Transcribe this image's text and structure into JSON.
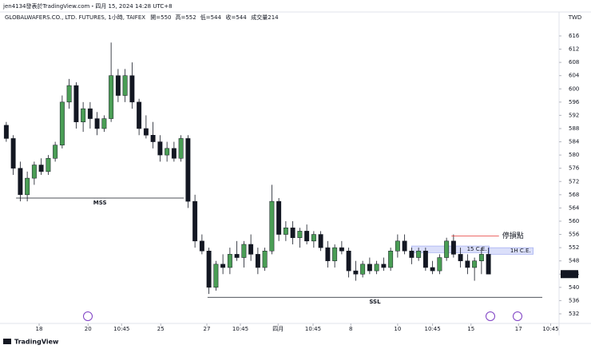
{
  "header": "jen4134發表於TradingView.com・四月 15, 2024 14:28 UTC+8",
  "chart_data": {
    "type": "candlestick",
    "symbol": "GLOBALWAFERS.CO., LTD. FUTURES, 1小時, TAIFEX",
    "legend_values": [
      "開=550",
      "高=552",
      "低=544",
      "收=544",
      "成交量214"
    ],
    "currency": "TWD",
    "up_color": "#4a9e55",
    "down_color": "#131722",
    "open": [
      589,
      585,
      576,
      568,
      573,
      577,
      575,
      579,
      583,
      596,
      601,
      590,
      594,
      591,
      588,
      591,
      604,
      598,
      604,
      596,
      588,
      586,
      584,
      580,
      582,
      579,
      585,
      566,
      554,
      551,
      540,
      547,
      546,
      550,
      549,
      553,
      550,
      546,
      551,
      566,
      556,
      558,
      555,
      557,
      554,
      556,
      552,
      548,
      552,
      551,
      545,
      544,
      547,
      545,
      547,
      546,
      551,
      554,
      551,
      549,
      551,
      546,
      545,
      549,
      554,
      550,
      548,
      546,
      548,
      550
    ],
    "high": [
      590,
      586,
      578,
      575,
      578,
      579,
      580,
      584,
      598,
      603,
      602,
      596,
      596,
      593,
      592,
      614,
      606,
      606,
      608,
      597,
      592,
      590,
      586,
      584,
      584,
      586,
      586,
      568,
      556,
      552,
      548,
      550,
      552,
      554,
      554,
      556,
      552,
      552,
      571,
      567,
      560,
      560,
      558,
      559,
      557,
      557,
      554,
      553,
      554,
      552,
      548,
      548,
      549,
      548,
      549,
      552,
      556,
      556,
      552,
      552,
      552,
      548,
      550,
      555,
      556,
      552,
      550,
      549,
      552,
      552
    ],
    "low": [
      584,
      574,
      566,
      566,
      571,
      574,
      574,
      578,
      582,
      594,
      588,
      587,
      588,
      586,
      587,
      590,
      596,
      596,
      594,
      586,
      585,
      582,
      578,
      578,
      578,
      578,
      564,
      552,
      550,
      538,
      539,
      544,
      544,
      548,
      546,
      548,
      544,
      545,
      550,
      554,
      554,
      553,
      552,
      553,
      552,
      551,
      546,
      546,
      550,
      543,
      542,
      543,
      544,
      544,
      545,
      545,
      549,
      550,
      547,
      548,
      545,
      544,
      544,
      548,
      549,
      546,
      544,
      542,
      544,
      544
    ],
    "close": [
      585,
      576,
      568,
      573,
      577,
      575,
      579,
      583,
      596,
      601,
      590,
      594,
      591,
      588,
      591,
      604,
      598,
      604,
      596,
      588,
      586,
      584,
      580,
      582,
      579,
      585,
      566,
      554,
      551,
      540,
      547,
      546,
      550,
      549,
      553,
      550,
      546,
      551,
      566,
      556,
      558,
      555,
      557,
      554,
      556,
      552,
      548,
      552,
      551,
      545,
      544,
      547,
      545,
      547,
      546,
      551,
      554,
      551,
      549,
      551,
      546,
      545,
      549,
      554,
      550,
      548,
      546,
      548,
      550,
      544
    ],
    "xlim": [
      -0.9,
      79.1
    ],
    "xticks": [
      {
        "value": 4.7,
        "label": "18"
      },
      {
        "value": 11.7,
        "label": "20"
      },
      {
        "value": 16.5,
        "label": "10:45"
      },
      {
        "value": 22.1,
        "label": "25"
      },
      {
        "value": 28.7,
        "label": "27"
      },
      {
        "value": 33.5,
        "label": "10:45"
      },
      {
        "value": 38.9,
        "label": "四月"
      },
      {
        "value": 43.9,
        "label": "10:45"
      },
      {
        "value": 49.3,
        "label": "8"
      },
      {
        "value": 56,
        "label": "10"
      },
      {
        "value": 61,
        "label": "10:45"
      },
      {
        "value": 66.5,
        "label": "15"
      },
      {
        "value": 73.3,
        "label": "17"
      },
      {
        "value": 77.9,
        "label": "10:45"
      }
    ],
    "ylim": [
      530.3,
      620.1
    ],
    "yticks": [
      532,
      536,
      540,
      544,
      548,
      552,
      556,
      560,
      564,
      568,
      572,
      576,
      580,
      584,
      588,
      592,
      596,
      600,
      604,
      608,
      612,
      616
    ],
    "lines": [
      {
        "label": "MSS",
        "y": 567,
        "x": [
          1.4,
          25.4
        ],
        "color": "#131722"
      },
      {
        "label": "SSL",
        "y": 537,
        "x": [
          28.8,
          76.7
        ],
        "color": "#131722"
      },
      {
        "label": "停損點",
        "y": 555.5,
        "x": [
          63.7,
          70.5
        ],
        "color": "#e53935"
      }
    ],
    "zones": [
      {
        "label": "15 C.E.",
        "y": [
          550.5,
          552.5
        ],
        "x": [
          58,
          69.1
        ]
      },
      {
        "label": "1H C.E.",
        "y": [
          550,
          552
        ],
        "x": [
          69.1,
          75.4
        ]
      }
    ]
  },
  "footer": "TradingView"
}
